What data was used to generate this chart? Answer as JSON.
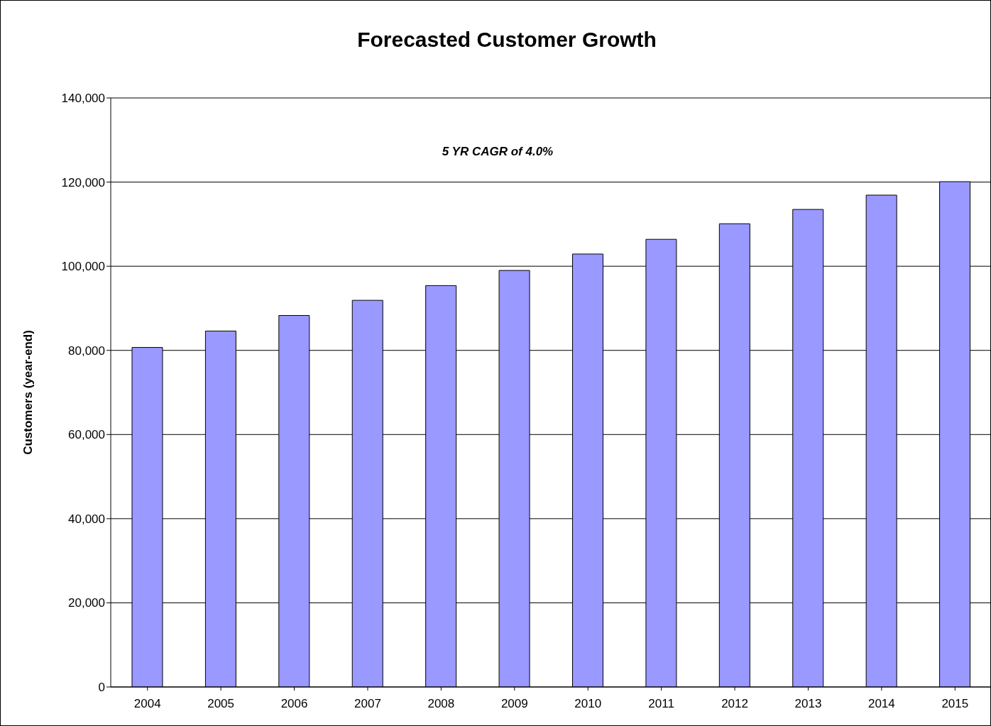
{
  "chart_data": {
    "type": "bar",
    "title": "Forecasted Customer Growth",
    "ylabel": "Customers (year-end)",
    "categories": [
      "2004",
      "2005",
      "2006",
      "2007",
      "2008",
      "2009",
      "2010",
      "2011",
      "2012",
      "2013",
      "2014",
      "2015"
    ],
    "values": [
      80700,
      84600,
      88300,
      91900,
      95400,
      99000,
      102900,
      106400,
      110100,
      113500,
      116900,
      120100
    ],
    "color": "#9999ff",
    "ylim": [
      0,
      140000
    ],
    "yticks": [
      0,
      {
        "value": 20000,
        "label": "20,000"
      },
      {
        "value": 40000,
        "label": "40,000"
      },
      {
        "value": 60000,
        "label": "60,000"
      },
      {
        "value": 80000,
        "label": "80,000"
      },
      {
        "value": 100000,
        "label": "100,000"
      },
      {
        "value": 120000,
        "label": "120,000"
      },
      {
        "value": 140000,
        "label": "140,000"
      }
    ],
    "grid": "y",
    "annotations": [
      "5 YR CAGR of 4.0%"
    ]
  }
}
